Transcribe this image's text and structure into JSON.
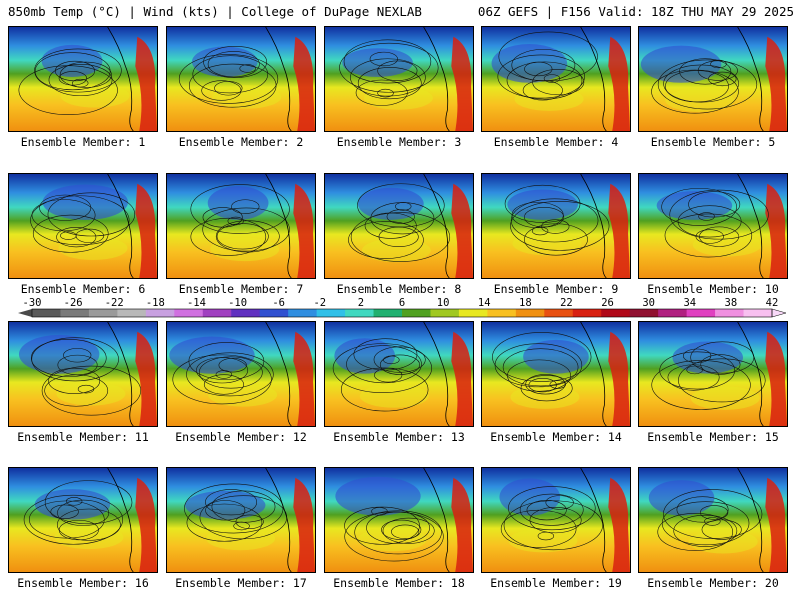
{
  "header": {
    "left": "850mb Temp (°C) | Wind (kts) | College of DuPage NEXLAB",
    "right": "06Z GEFS | F156 Valid: 18Z THU MAY 29 2025"
  },
  "panels": [
    {
      "label": "Ensemble Member: 1"
    },
    {
      "label": "Ensemble Member: 2"
    },
    {
      "label": "Ensemble Member: 3"
    },
    {
      "label": "Ensemble Member: 4"
    },
    {
      "label": "Ensemble Member: 5"
    },
    {
      "label": "Ensemble Member: 6"
    },
    {
      "label": "Ensemble Member: 7"
    },
    {
      "label": "Ensemble Member: 8"
    },
    {
      "label": "Ensemble Member: 9"
    },
    {
      "label": "Ensemble Member: 10"
    },
    {
      "label": "Ensemble Member: 11"
    },
    {
      "label": "Ensemble Member: 12"
    },
    {
      "label": "Ensemble Member: 13"
    },
    {
      "label": "Ensemble Member: 14"
    },
    {
      "label": "Ensemble Member: 15"
    },
    {
      "label": "Ensemble Member: 16"
    },
    {
      "label": "Ensemble Member: 17"
    },
    {
      "label": "Ensemble Member: 18"
    },
    {
      "label": "Ensemble Member: 19"
    },
    {
      "label": "Ensemble Member: 20"
    }
  ],
  "colorbar": {
    "ticks": [
      "-30",
      "-26",
      "-22",
      "-18",
      "-14",
      "-10",
      "-6",
      "-2",
      "2",
      "6",
      "10",
      "14",
      "18",
      "22",
      "26",
      "30",
      "34",
      "38",
      "42"
    ],
    "colors": [
      "#5a5a5a",
      "#7a7a7a",
      "#9a9a9a",
      "#b8b8b8",
      "#c8a0e0",
      "#d070e0",
      "#a040c0",
      "#6030c0",
      "#3050d0",
      "#2f8ee0",
      "#30c0e8",
      "#40d8c0",
      "#20b070",
      "#50a020",
      "#a0c820",
      "#e8e820",
      "#f8c020",
      "#f09010",
      "#e85010",
      "#d82010",
      "#b00818",
      "#901030",
      "#b02080",
      "#e040c0",
      "#f090e0",
      "#f8c0f0"
    ]
  }
}
